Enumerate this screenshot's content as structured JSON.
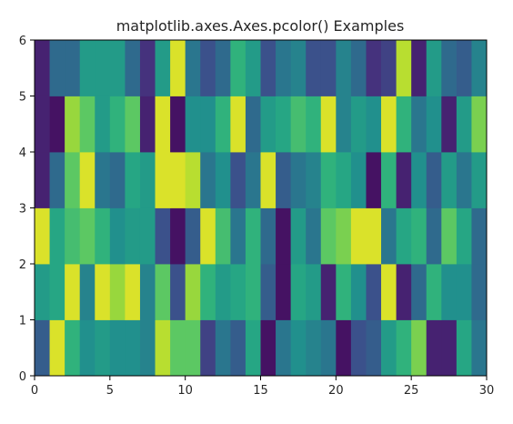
{
  "chart_data": {
    "type": "heatmap",
    "title": "matplotlib.axes.Axes.pcolor() Examples",
    "xlabel": "",
    "ylabel": "",
    "xlim": [
      0,
      30
    ],
    "ylim": [
      0,
      6
    ],
    "xticks": [
      "0",
      "5",
      "10",
      "15",
      "20",
      "25",
      "30"
    ],
    "yticks": [
      "0",
      "1",
      "2",
      "3",
      "4",
      "5",
      "6"
    ],
    "colormap": "viridis",
    "value_range": [
      0,
      1
    ],
    "cells_note": "rows listed bottom (y=0..1) to top (y=5..6); each row has 30 columns for x=0..30",
    "values": [
      [
        0.3,
        0.95,
        0.65,
        0.5,
        0.55,
        0.5,
        0.5,
        0.45,
        0.9,
        0.75,
        0.75,
        0.2,
        0.4,
        0.3,
        0.6,
        0.05,
        0.4,
        0.5,
        0.45,
        0.4,
        0.05,
        0.25,
        0.3,
        0.55,
        0.65,
        0.8,
        0.1,
        0.1,
        0.6,
        0.4
      ],
      [
        0.55,
        0.6,
        0.95,
        0.45,
        0.95,
        0.85,
        0.95,
        0.45,
        0.75,
        0.25,
        0.85,
        0.65,
        0.55,
        0.6,
        0.65,
        0.3,
        0.05,
        0.6,
        0.55,
        0.1,
        0.65,
        0.5,
        0.25,
        0.95,
        0.1,
        0.35,
        0.65,
        0.5,
        0.5,
        0.35
      ],
      [
        0.95,
        0.6,
        0.7,
        0.75,
        0.65,
        0.5,
        0.55,
        0.55,
        0.25,
        0.05,
        0.3,
        0.95,
        0.7,
        0.4,
        0.65,
        0.35,
        0.05,
        0.55,
        0.4,
        0.75,
        0.8,
        0.95,
        0.95,
        0.4,
        0.6,
        0.65,
        0.35,
        0.75,
        0.6,
        0.35
      ],
      [
        0.1,
        0.35,
        0.75,
        0.95,
        0.4,
        0.35,
        0.6,
        0.55,
        0.95,
        0.95,
        0.9,
        0.4,
        0.5,
        0.25,
        0.4,
        0.95,
        0.3,
        0.4,
        0.45,
        0.65,
        0.6,
        0.5,
        0.05,
        0.65,
        0.1,
        0.5,
        0.3,
        0.55,
        0.4,
        0.55
      ],
      [
        0.1,
        0.05,
        0.85,
        0.75,
        0.55,
        0.65,
        0.75,
        0.1,
        0.95,
        0.05,
        0.5,
        0.5,
        0.65,
        0.95,
        0.35,
        0.55,
        0.6,
        0.7,
        0.65,
        0.95,
        0.45,
        0.55,
        0.5,
        0.95,
        0.65,
        0.4,
        0.5,
        0.1,
        0.55,
        0.8
      ],
      [
        0.1,
        0.35,
        0.35,
        0.55,
        0.55,
        0.55,
        0.35,
        0.15,
        0.55,
        0.95,
        0.4,
        0.25,
        0.35,
        0.65,
        0.55,
        0.25,
        0.4,
        0.45,
        0.25,
        0.25,
        0.45,
        0.35,
        0.15,
        0.2,
        0.9,
        0.1,
        0.55,
        0.35,
        0.3,
        0.45
      ]
    ]
  }
}
